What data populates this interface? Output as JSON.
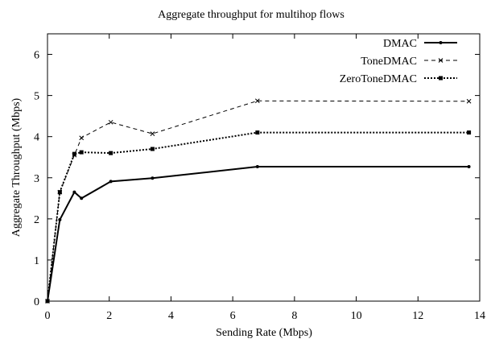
{
  "chart_data": {
    "type": "line",
    "title": "Aggregate throughput for multihop flows",
    "xlabel": "Sending Rate (Mbps)",
    "ylabel": "Aggregate Throughput (Mbps)",
    "xlim": [
      0,
      14
    ],
    "ylim": [
      0,
      6.5
    ],
    "xticks": [
      0,
      2,
      4,
      6,
      8,
      10,
      12,
      14
    ],
    "yticks": [
      0,
      1,
      2,
      3,
      4,
      5,
      6
    ],
    "grid": false,
    "legend_position": "top-right",
    "series": [
      {
        "name": "DMAC",
        "style": "solid",
        "marker": "dot",
        "color": "#000000",
        "points": [
          [
            0,
            0
          ],
          [
            0.4,
            1.98
          ],
          [
            0.87,
            2.65
          ],
          [
            1.1,
            2.5
          ],
          [
            2.05,
            2.91
          ],
          [
            3.4,
            2.99
          ],
          [
            6.8,
            3.27
          ],
          [
            13.65,
            3.27
          ]
        ]
      },
      {
        "name": "ToneDMAC",
        "style": "dashed",
        "marker": "x",
        "color": "#000000",
        "points": [
          [
            0,
            0
          ],
          [
            0.4,
            2.65
          ],
          [
            0.87,
            3.55
          ],
          [
            1.1,
            3.97
          ],
          [
            2.05,
            4.35
          ],
          [
            3.4,
            4.07
          ],
          [
            6.8,
            4.87
          ],
          [
            13.65,
            4.86
          ]
        ]
      },
      {
        "name": "ZeroToneDMAC",
        "style": "dotted",
        "marker": "square",
        "color": "#000000",
        "points": [
          [
            0,
            0
          ],
          [
            0.4,
            2.65
          ],
          [
            0.87,
            3.58
          ],
          [
            1.1,
            3.62
          ],
          [
            2.05,
            3.6
          ],
          [
            3.4,
            3.7
          ],
          [
            6.8,
            4.1
          ],
          [
            13.65,
            4.1
          ]
        ]
      }
    ]
  }
}
